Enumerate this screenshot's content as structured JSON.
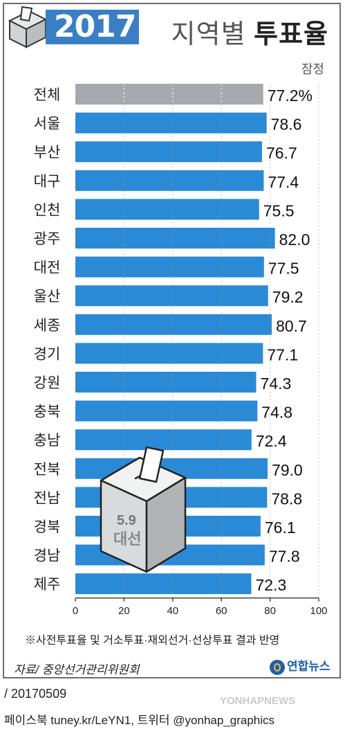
{
  "header": {
    "year_label": "2017",
    "title_light": "지역별 ",
    "title_bold": "투표율",
    "subtitle": "잠정"
  },
  "chart_data": {
    "type": "bar",
    "orientation": "horizontal",
    "categories": [
      "전체",
      "서울",
      "부산",
      "대구",
      "인천",
      "광주",
      "대전",
      "울산",
      "세종",
      "경기",
      "강원",
      "충북",
      "충남",
      "전북",
      "전남",
      "경북",
      "경남",
      "제주"
    ],
    "values": [
      77.2,
      78.6,
      76.7,
      77.4,
      75.5,
      82.0,
      77.5,
      79.2,
      80.7,
      77.1,
      74.3,
      74.8,
      72.4,
      79.0,
      78.8,
      76.1,
      77.8,
      72.3
    ],
    "value_labels": [
      "77.2%",
      "78.6",
      "76.7",
      "77.4",
      "75.5",
      "82.0",
      "77.5",
      "79.2",
      "80.7",
      "77.1",
      "74.3",
      "74.8",
      "72.4",
      "79.0",
      "78.8",
      "76.1",
      "77.8",
      "72.3"
    ],
    "highlight_colors": {
      "total": "#a7a9ac",
      "region": "#2b8ad6"
    },
    "xlim": [
      0,
      100
    ],
    "xticks": [
      "0",
      "20",
      "40",
      "60",
      "80",
      "100"
    ],
    "grid": "dashed vertical at ticks"
  },
  "ballot_box": {
    "date_label": "5.9",
    "event_label": "대선"
  },
  "footnote": "※사전투표율 및 거소투표·재외선거·선상투표 결과 반영",
  "source": "자료/ 중앙선거관리위원회",
  "logo_text": "연합뉴스",
  "date_line": "/ 20170509",
  "social_line": "페이스북 tuney.kr/LeYN1, 트위터 @yonhap_graphics",
  "watermark": "YONHAPNEWS"
}
